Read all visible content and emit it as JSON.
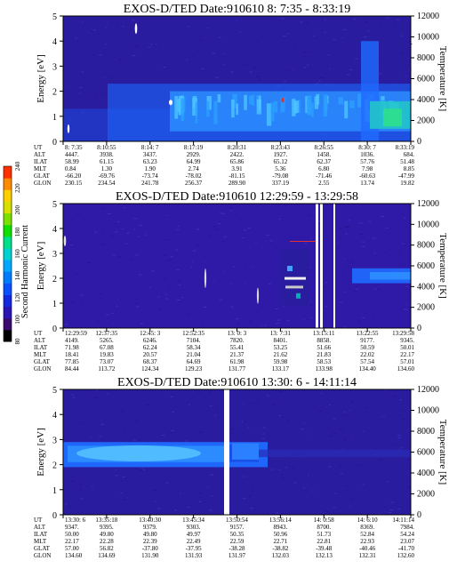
{
  "chart_data": [
    {
      "type": "heatmap",
      "title": "EXOS-D/TED   Date:910610   8: 7:35 - 8:33:19",
      "ylabel": "Energy [eV]",
      "y2label": "Temperature [K]",
      "yticks": [
        "0",
        "1",
        "2",
        "3",
        "4",
        "5"
      ],
      "y2ticks": [
        "0",
        "2000",
        "4000",
        "6000",
        "8000",
        "10000",
        "12000"
      ],
      "ylim": [
        0,
        5
      ],
      "y2lim": [
        0,
        12000
      ],
      "rows": [
        {
          "name": "UT",
          "values": [
            "8: 7:35",
            "8:10:55",
            "8:14: 7",
            "8:17:19",
            "8:20:31",
            "8:23:43",
            "8:26:55",
            "8:30: 7",
            "8:33:19"
          ]
        },
        {
          "name": "ALT",
          "values": [
            "4447.",
            "3938.",
            "3437.",
            "2929.",
            "2422.",
            "1927.",
            "1458.",
            "1036.",
            "684."
          ]
        },
        {
          "name": "ILAT",
          "values": [
            "58.99",
            "61.15",
            "63.23",
            "64.99",
            "65.86",
            "65.12",
            "62.37",
            "57.76",
            "51.48"
          ]
        },
        {
          "name": "MLT",
          "values": [
            "0.84",
            "1.30",
            "1.90",
            "2.74",
            "3.91",
            "5.36",
            "6.80",
            "7.98",
            "8.85"
          ]
        },
        {
          "name": "GLAT",
          "values": [
            "-66.20",
            "-69.76",
            "-73.74",
            "-78.02",
            "-81.15",
            "-79.08",
            "-71.46",
            "-60.63",
            "-47.99"
          ]
        },
        {
          "name": "GLON",
          "values": [
            "230.15",
            "234.54",
            "241.78",
            "256.37",
            "289.90",
            "337.19",
            "2.55",
            "13.74",
            "19.82"
          ]
        }
      ]
    },
    {
      "type": "heatmap",
      "title": "EXOS-D/TED   Date:910610   12:29:59 - 13:29:58",
      "ylabel": "Energy [eV]",
      "y2label": "Temperature [K]",
      "yticks": [
        "0",
        "1",
        "2",
        "3",
        "4",
        "5"
      ],
      "y2ticks": [
        "0",
        "2000",
        "4000",
        "6000",
        "8000",
        "10000",
        "12000"
      ],
      "ylim": [
        0,
        5
      ],
      "y2lim": [
        0,
        12000
      ],
      "rows": [
        {
          "name": "UT",
          "values": [
            "12:29:59",
            "12:37:35",
            "12:45: 3",
            "12:52:35",
            "13: 0: 3",
            "13: 7:31",
            "13:15:11",
            "13:22:55",
            "13:29:58"
          ]
        },
        {
          "name": "ALT",
          "values": [
            "4149.",
            "5265.",
            "6246.",
            "7104.",
            "7820.",
            "8401.",
            "8858.",
            "9177.",
            "9345."
          ]
        },
        {
          "name": "ILAT",
          "values": [
            "71.98",
            "67.08",
            "62.24",
            "58.34",
            "55.41",
            "53.25",
            "51.66",
            "50.59",
            "50.01"
          ]
        },
        {
          "name": "MLT",
          "values": [
            "18.41",
            "19.83",
            "20.57",
            "21.04",
            "21.37",
            "21.62",
            "21.83",
            "22.02",
            "22.17"
          ]
        },
        {
          "name": "GLAT",
          "values": [
            "77.85",
            "73.07",
            "68.37",
            "64.69",
            "61.98",
            "59.98",
            "58.53",
            "57.54",
            "57.01"
          ]
        },
        {
          "name": "GLON",
          "values": [
            "84.44",
            "113.72",
            "124.34",
            "129.23",
            "131.77",
            "133.17",
            "133.98",
            "134.40",
            "134.60"
          ]
        }
      ]
    },
    {
      "type": "heatmap",
      "title": "EXOS-D/TED   Date:910610   13:30: 6 - 14:11:14",
      "ylabel": "Energy [eV]",
      "y2label": "Temperature [K]",
      "yticks": [
        "0",
        "1",
        "2",
        "3",
        "4",
        "5"
      ],
      "y2ticks": [
        "0",
        "2000",
        "4000",
        "6000",
        "8000",
        "10000",
        "12000"
      ],
      "ylim": [
        0,
        5
      ],
      "y2lim": [
        0,
        12000
      ],
      "rows": [
        {
          "name": "UT",
          "values": [
            "13:30: 6",
            "13:35:18",
            "13:40:30",
            "13:45:34",
            "13:50:54",
            "13:56:14",
            "14: 0:58",
            "14: 6:10",
            "14:11:14"
          ]
        },
        {
          "name": "ALT",
          "values": [
            "9347.",
            "9395.",
            "9379.",
            "9303.",
            "9157.",
            "8943.",
            "8700.",
            "8369.",
            "7984."
          ]
        },
        {
          "name": "ILAT",
          "values": [
            "50.00",
            "49.80",
            "49.80",
            "49.97",
            "50.35",
            "50.96",
            "51.73",
            "52.84",
            "54.24"
          ]
        },
        {
          "name": "MLT",
          "values": [
            "22.17",
            "22.28",
            "22.39",
            "22.49",
            "22.59",
            "22.71",
            "22.81",
            "22.93",
            "23.07"
          ]
        },
        {
          "name": "GLAT",
          "values": [
            "57.00",
            "56.82",
            "-37.80",
            "-37.95",
            "-38.28",
            "-38.82",
            "-39.48",
            "-40.46",
            "-41.70"
          ]
        },
        {
          "name": "GLON",
          "values": [
            "134.60",
            "134.69",
            "131.90",
            "131.93",
            "131.97",
            "132.03",
            "132.13",
            "132.31",
            "132.60"
          ]
        }
      ]
    }
  ],
  "colorbar": {
    "label": "Second Harmonic Current",
    "ticks": [
      "80",
      "100",
      "120",
      "140",
      "160",
      "180",
      "200",
      "220",
      "240"
    ],
    "colors": [
      "#000000",
      "#3a0a6e",
      "#2a14b4",
      "#1428e0",
      "#0a50ff",
      "#007cff",
      "#00a8ff",
      "#00d2d2",
      "#00e08a",
      "#10e000",
      "#7ce000",
      "#d8e000",
      "#ffd000",
      "#ff8c00",
      "#ff3000"
    ]
  }
}
